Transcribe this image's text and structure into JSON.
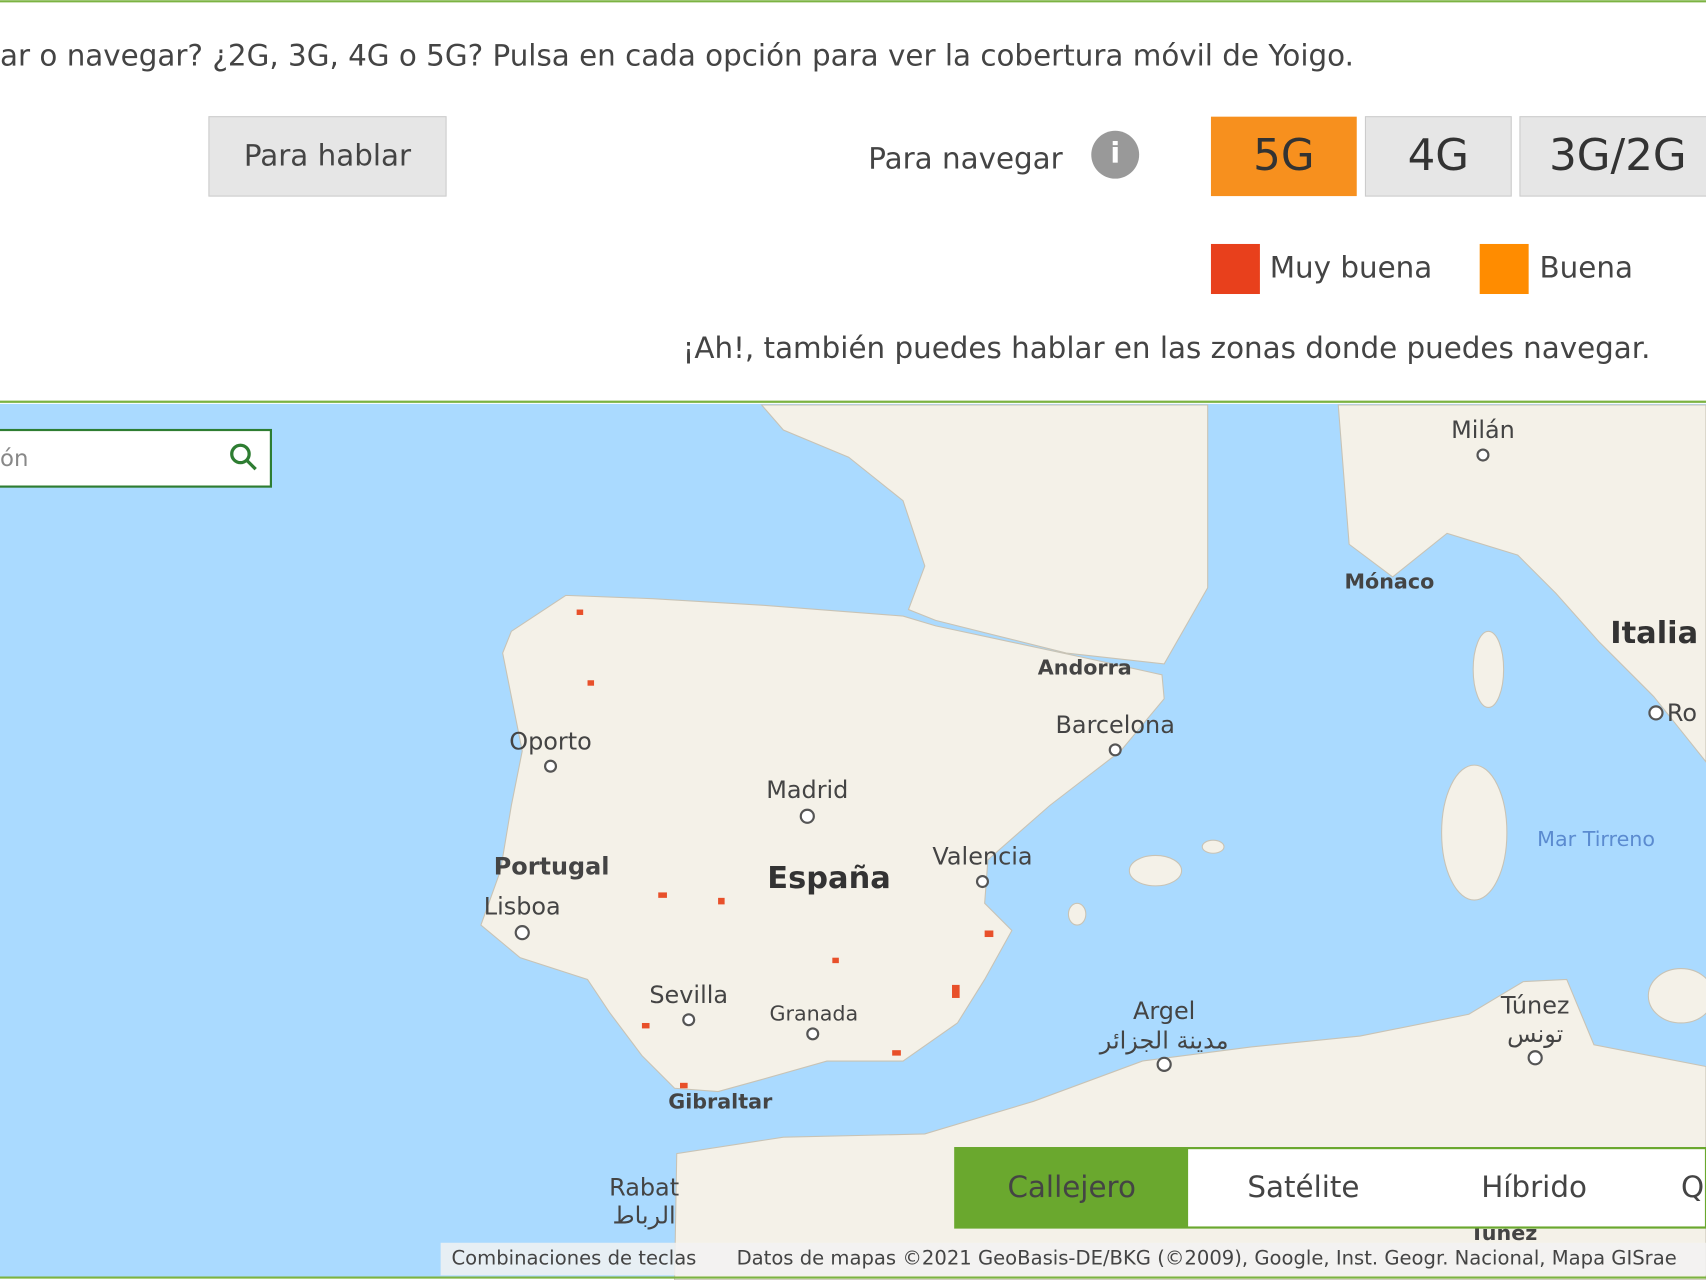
{
  "header": {
    "intro": "ar o navegar? ¿2G, 3G, 4G o 5G? Pulsa en cada opción para ver la cobertura móvil de Yoigo.",
    "talk_button": "Para hablar",
    "browse_label": "Para navegar",
    "info_icon": "i",
    "tabs": [
      "5G",
      "4G",
      "3G/2G"
    ]
  },
  "legend": [
    {
      "label": "Muy buena",
      "color": "#e8401c"
    },
    {
      "label": "Buena",
      "color": "#ff8c00"
    }
  ],
  "note": "¡Ah!, también puedes hablar en las zonas donde puedes navegar.",
  "map": {
    "search_placeholder": "ón",
    "labels": {
      "milan": "Milán",
      "monaco": "Mónaco",
      "italia": "Italia",
      "andorra": "Andorra",
      "barcelona": "Barcelona",
      "roma": "Ro",
      "oporto": "Oporto",
      "madrid": "Madrid",
      "portugal": "Portugal",
      "espana": "España",
      "valencia": "Valencia",
      "lisboa": "Lisboa",
      "mar_tirreno": "Mar Tirreno",
      "sevilla": "Sevilla",
      "granada": "Granada",
      "argel": "Argel",
      "argel_ar": "مدينة الجزائر",
      "tunez": "Túnez",
      "tunez_ar": "تونس",
      "gibraltar": "Gibraltar",
      "rabat": "Rabat",
      "rabat_ar": "الرباط",
      "tunez2": "Túnez"
    },
    "map_types": [
      "Callejero",
      "Satélite",
      "Híbrido",
      "Q"
    ],
    "footer": [
      "Combinaciones de teclas",
      "Datos de mapas ©2021 GeoBasis-DE/BKG (©2009), Google, Inst. Geogr. Nacional, Mapa GISrae"
    ]
  }
}
